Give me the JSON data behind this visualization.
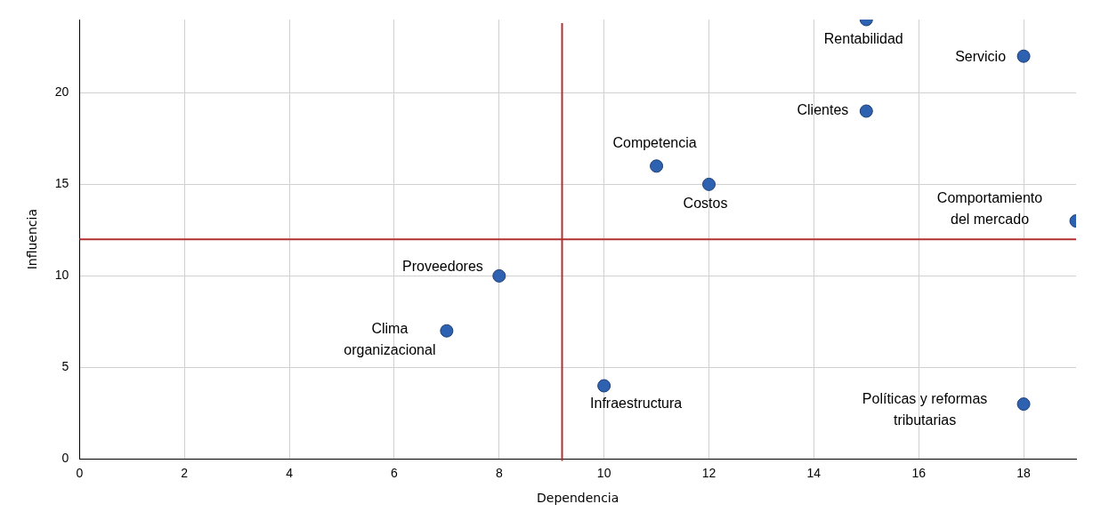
{
  "chart_data": {
    "type": "scatter",
    "xlabel": "Dependencia",
    "ylabel": "Influencia",
    "x": [
      15,
      18,
      15,
      11,
      12,
      19,
      8,
      7,
      10,
      18
    ],
    "values": [
      24,
      22,
      19,
      16,
      15,
      13,
      10,
      7,
      4,
      3
    ],
    "color": "#2e62b0",
    "marker": "circle",
    "xlim": [
      0,
      19
    ],
    "xticks": [
      0,
      2,
      4,
      6,
      8,
      10,
      12,
      14,
      16,
      18
    ],
    "ylim": [
      0,
      24
    ],
    "yticks": [
      0,
      5,
      10,
      15,
      20
    ],
    "grid": true,
    "legend": false,
    "ref_lines": [
      {
        "axis": "x",
        "value": 9.2,
        "color": "#b03030"
      },
      {
        "axis": "y",
        "value": 12,
        "color": "#b03030"
      }
    ],
    "annotations": [
      {
        "text": "Rentabilidad",
        "x": 15,
        "y": 24
      },
      {
        "text": "Servicio",
        "x": 18,
        "y": 22
      },
      {
        "text": "Clientes",
        "x": 15,
        "y": 19
      },
      {
        "text": "Competencia",
        "x": 11,
        "y": 16
      },
      {
        "text": "Costos",
        "x": 12,
        "y": 15
      },
      {
        "text": "Comportamiento\ndel mercado",
        "x": 19,
        "y": 13
      },
      {
        "text": "Proveedores",
        "x": 8,
        "y": 10
      },
      {
        "text": "Clima\norganizacional",
        "x": 7,
        "y": 7
      },
      {
        "text": "Infraestructura",
        "x": 10,
        "y": 4
      },
      {
        "text": "Políticas y reformas\ntributarias",
        "x": 18,
        "y": 3
      }
    ]
  }
}
